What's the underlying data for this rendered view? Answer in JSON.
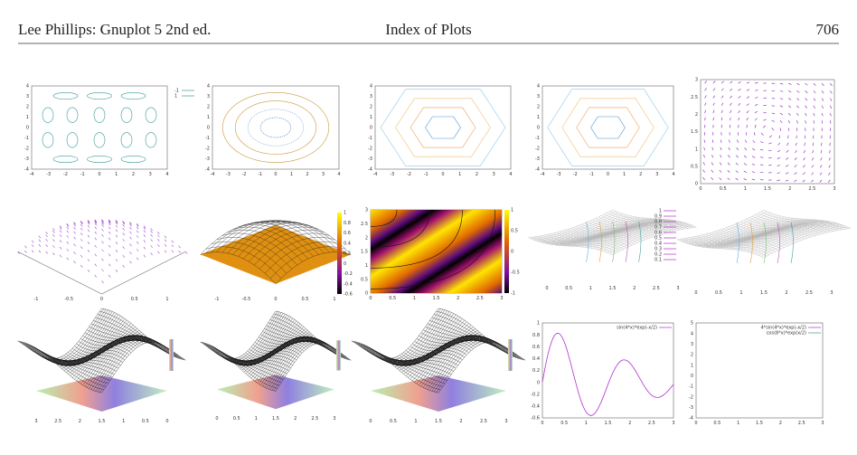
{
  "header": {
    "left": "Lee Phillips: Gnuplot 5 2nd ed.",
    "center": "Index of Plots",
    "page": "706"
  },
  "thumbnails": [
    {
      "xticks": [
        "-4",
        "-3",
        "-2",
        "-1",
        "0",
        "1",
        "2",
        "3",
        "4"
      ],
      "yticks": [
        "4",
        "3",
        "2",
        "1",
        "0",
        "-1",
        "-2",
        "-3",
        "-4"
      ],
      "legend": [
        "-1",
        "1"
      ]
    },
    {
      "xticks": [
        "-4",
        "-3",
        "-2",
        "-1",
        "0",
        "1",
        "2",
        "3",
        "4"
      ],
      "yticks": [
        "4",
        "3",
        "2",
        "1",
        "0",
        "-1",
        "-2",
        "-3",
        "-4"
      ]
    },
    {
      "xticks": [
        "-4",
        "-3",
        "-2",
        "-1",
        "0",
        "1",
        "2",
        "3",
        "4"
      ],
      "yticks": [
        "4",
        "3",
        "2",
        "1",
        "0",
        "-1",
        "-2",
        "-3",
        "-4"
      ]
    },
    {
      "xticks": [
        "-4",
        "-3",
        "-2",
        "-1",
        "0",
        "1",
        "2",
        "3",
        "4"
      ],
      "yticks": [
        "4",
        "3",
        "2",
        "1",
        "0",
        "-1",
        "-2",
        "-3",
        "-4"
      ]
    },
    {
      "xticks": [
        "0",
        "0.5",
        "1",
        "1.5",
        "2",
        "2.5",
        "3"
      ],
      "yticks": [
        "3",
        "2.5",
        "2",
        "1.5",
        "1",
        "0.5",
        "0"
      ]
    },
    {
      "xticks": [
        "-1",
        "-0.5",
        "0",
        "0.5",
        "1"
      ]
    },
    {
      "xticks": [
        "-1",
        "-0.5",
        "0",
        "0.5",
        "1"
      ],
      "cbticks": [
        "1",
        "0.8",
        "0.6",
        "0.4",
        "0.2",
        "0",
        "-0.2",
        "-0.4",
        "-0.6"
      ]
    },
    {
      "xticks": [
        "0",
        "0.5",
        "1",
        "1.5",
        "2",
        "2.5",
        "3"
      ],
      "yticks": [
        "3",
        "2.5",
        "2",
        "1.5",
        "1",
        "0.5",
        "0"
      ],
      "cbticks": [
        "1",
        "0.5",
        "0",
        "-0.5",
        "-1"
      ]
    },
    {
      "xticks": [
        "0",
        "0.5",
        "1",
        "1.5",
        "2",
        "2.5",
        "3"
      ],
      "legend": [
        "1",
        "0.9",
        "0.8",
        "0.7",
        "0.6",
        "0.5",
        "0.4",
        "0.3",
        "0.2",
        "0.1"
      ]
    },
    {
      "xticks": [
        "0",
        "0.5",
        "1",
        "1.5",
        "2",
        "2.5",
        "3"
      ]
    },
    {
      "xticks": [
        "3",
        "2.5",
        "2",
        "1.5",
        "1",
        "0.5",
        "0"
      ]
    },
    {
      "xticks": [
        "0",
        "0.5",
        "1",
        "1.5",
        "2",
        "2.5",
        "3"
      ]
    },
    {
      "xticks": [
        "0",
        "0.5",
        "1",
        "1.5",
        "2",
        "2.5",
        "3"
      ]
    },
    {
      "xticks": [
        "0",
        "0.5",
        "1",
        "1.5",
        "2",
        "2.5",
        "3"
      ],
      "yticks": [
        "1",
        "0.8",
        "0.6",
        "0.4",
        "0.2",
        "0",
        "-0.2",
        "-0.4",
        "-0.6"
      ],
      "legend": [
        "sin(4*x)*exp(-x/2)"
      ]
    },
    {
      "xticks": [
        "0",
        "0.5",
        "1",
        "1.5",
        "2",
        "2.5",
        "3"
      ],
      "yticks": [
        "5",
        "4",
        "3",
        "2",
        "1",
        "0",
        "-1",
        "-2",
        "-3",
        "-4"
      ],
      "legend": [
        "4*sin(4*x)*exp(-x/2)",
        "cos(8*x)*exp(x/2)"
      ]
    }
  ]
}
